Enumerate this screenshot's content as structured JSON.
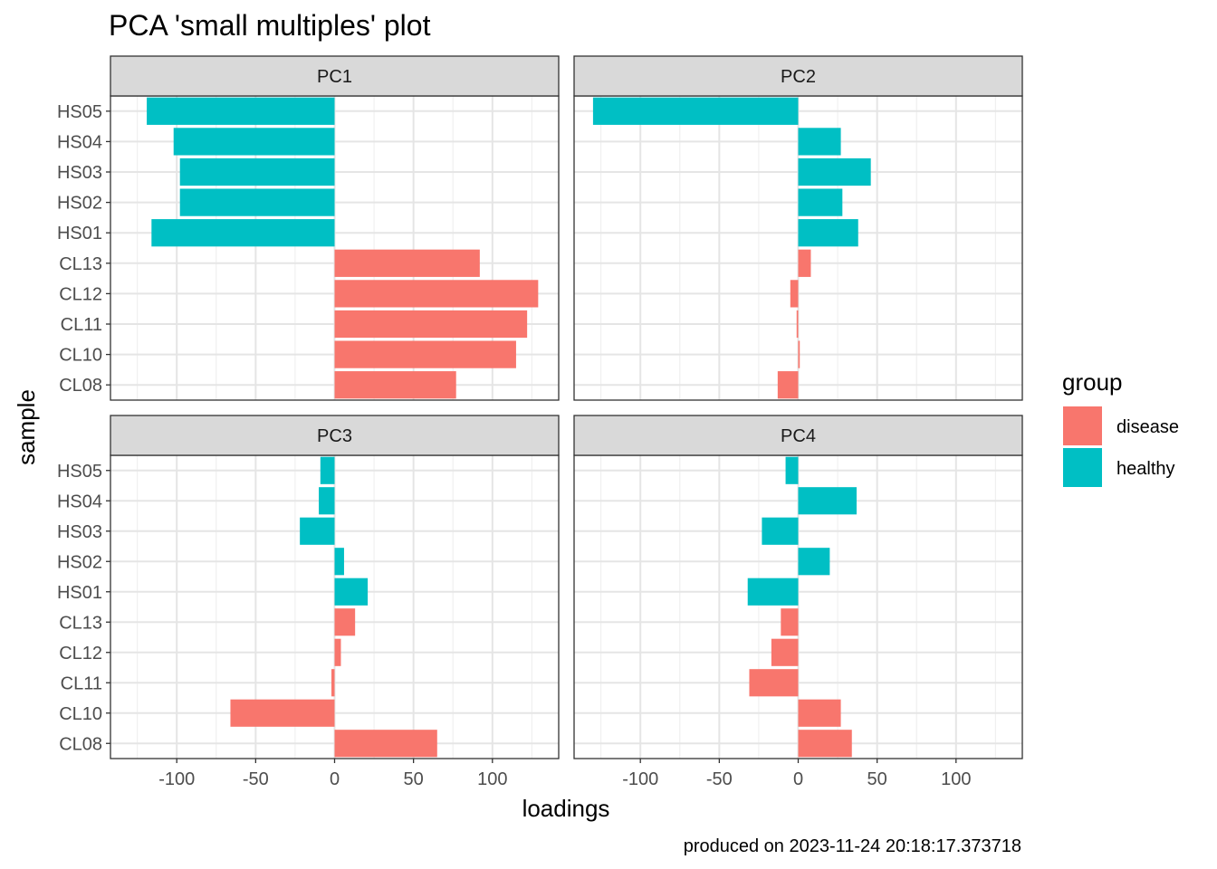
{
  "chart_data": {
    "type": "bar",
    "title": "PCA 'small multiples' plot",
    "xlabel": "loadings",
    "ylabel": "sample",
    "caption": "produced on 2023-11-24 20:18:17.373718",
    "x_ticks": [
      -100,
      -50,
      0,
      50,
      100
    ],
    "xlim": [
      -142,
      142
    ],
    "categories": [
      "CL08",
      "CL10",
      "CL11",
      "CL12",
      "CL13",
      "HS01",
      "HS02",
      "HS03",
      "HS04",
      "HS05"
    ],
    "group_of_category": [
      "disease",
      "disease",
      "disease",
      "disease",
      "disease",
      "healthy",
      "healthy",
      "healthy",
      "healthy",
      "healthy"
    ],
    "legend": {
      "title": "group",
      "position": "right",
      "entries": [
        {
          "label": "disease",
          "color": "#F8766D"
        },
        {
          "label": "healthy",
          "color": "#00BFC4"
        }
      ]
    },
    "grid": true,
    "panels": [
      {
        "name": "PC1",
        "values": [
          77,
          115,
          122,
          129,
          92,
          -116,
          -98,
          -98,
          -102,
          -119
        ]
      },
      {
        "name": "PC2",
        "values": [
          -13,
          1,
          -1,
          -5,
          8,
          38,
          28,
          46,
          27,
          -130
        ]
      },
      {
        "name": "PC3",
        "values": [
          65,
          -66,
          -2,
          4,
          13,
          21,
          6,
          -22,
          -10,
          -9
        ]
      },
      {
        "name": "PC4",
        "values": [
          34,
          27,
          -31,
          -17,
          -11,
          -32,
          20,
          -23,
          37,
          -8
        ]
      }
    ]
  }
}
